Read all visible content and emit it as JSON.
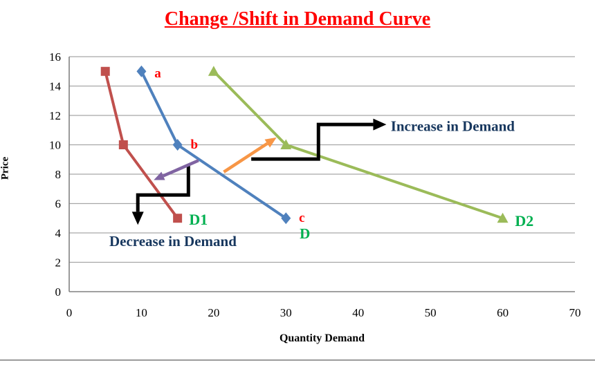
{
  "title": {
    "text": "Change /Shift in Demand Curve",
    "color": "#FF0000"
  },
  "axes": {
    "x": {
      "title": "Quantity Demand",
      "ticks": [
        0,
        10,
        20,
        30,
        40,
        50,
        60,
        70
      ],
      "range": [
        0,
        70
      ]
    },
    "y": {
      "title": "Price",
      "ticks": [
        0,
        2,
        4,
        6,
        8,
        10,
        12,
        14,
        16
      ],
      "range": [
        0,
        16
      ]
    }
  },
  "chart_data": {
    "type": "line",
    "title": "Change /Shift in Demand Curve",
    "xlabel": "Quantity Demand",
    "ylabel": "Price",
    "xlim": [
      0,
      70
    ],
    "ylim": [
      0,
      16
    ],
    "x_ticks": [
      0,
      10,
      20,
      30,
      40,
      50,
      60,
      70
    ],
    "y_ticks": [
      0,
      2,
      4,
      6,
      8,
      10,
      12,
      14,
      16
    ],
    "grid": "horizontal",
    "legend": "none",
    "style": {
      "grid_color": "#a6a6a6",
      "axis_color": "#808080",
      "tick_font_size": 17,
      "line_width": 4
    },
    "series": [
      {
        "name": "D1",
        "color": "#C0504D",
        "marker": "square",
        "points": [
          [
            5,
            15
          ],
          [
            7.5,
            10
          ],
          [
            15,
            5
          ]
        ]
      },
      {
        "name": "D",
        "color": "#4F81BD",
        "marker": "diamond",
        "points": [
          [
            10,
            15
          ],
          [
            15,
            10
          ],
          [
            30,
            5
          ]
        ]
      },
      {
        "name": "D2",
        "color": "#9BBB59",
        "marker": "triangle",
        "points": [
          [
            20,
            15
          ],
          [
            30,
            10
          ],
          [
            60,
            5
          ]
        ]
      }
    ],
    "point_labels": [
      {
        "text": "a",
        "x": 11.8,
        "y": 14.9,
        "color": "#FF0000",
        "size": 19
      },
      {
        "text": "b",
        "x": 16.8,
        "y": 10.05,
        "color": "#FF0000",
        "size": 19
      },
      {
        "text": "c",
        "x": 31.8,
        "y": 5.05,
        "color": "#FF0000",
        "size": 19
      },
      {
        "text": "D",
        "x": 31.9,
        "y": 3.95,
        "color": "#00B050",
        "size": 21
      },
      {
        "text": "D1",
        "x": 16.6,
        "y": 4.92,
        "color": "#00B050",
        "size": 22
      },
      {
        "text": "D2",
        "x": 61.7,
        "y": 4.82,
        "color": "#00B050",
        "size": 22
      }
    ],
    "annotations": [
      {
        "id": "increase",
        "text": "Increase in Demand",
        "x": 44.5,
        "y": 11.28,
        "color": "#17375E",
        "size": 21
      },
      {
        "id": "decrease",
        "text": "Decrease in Demand",
        "x": 5.55,
        "y": 3.45,
        "color": "#17375E",
        "size": 21
      }
    ],
    "arrows": [
      {
        "id": "increase-elbow",
        "color": "#000000",
        "width": 5,
        "head_len": 19,
        "head_w": 17,
        "points": [
          [
            25.2,
            9.03
          ],
          [
            34.5,
            9.03
          ],
          [
            34.5,
            11.38
          ],
          [
            43.9,
            11.38
          ]
        ]
      },
      {
        "id": "decrease-elbow",
        "color": "#000000",
        "width": 5,
        "head_len": 19,
        "head_w": 17,
        "points": [
          [
            16.5,
            8.56
          ],
          [
            16.5,
            6.58
          ],
          [
            9.5,
            6.58
          ],
          [
            9.5,
            4.55
          ]
        ]
      },
      {
        "id": "shift-right",
        "color": "#F79646",
        "width": 4.5,
        "head_len": 16,
        "head_w": 14,
        "points": [
          [
            21.4,
            8.15
          ],
          [
            28.7,
            10.5
          ]
        ]
      },
      {
        "id": "shift-left",
        "color": "#8064A2",
        "width": 4.5,
        "head_len": 15,
        "head_w": 13,
        "points": [
          [
            17.9,
            8.93
          ],
          [
            11.7,
            7.6
          ]
        ]
      }
    ]
  }
}
